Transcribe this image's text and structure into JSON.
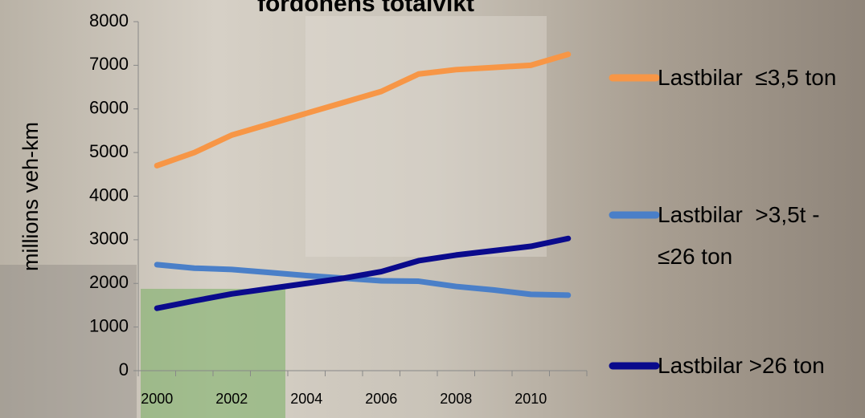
{
  "chart_data": {
    "type": "line",
    "title": "fordonens totalvikt",
    "y_label": "millions veh-km",
    "categories": [
      2000,
      null,
      2002,
      null,
      2004,
      null,
      2006,
      null,
      2008,
      null,
      2010,
      null
    ],
    "series": [
      {
        "name": "Lastbilar  ≤3,5 ton",
        "color": "#f79646",
        "values": [
          4700,
          5000,
          5400,
          5650,
          5900,
          6150,
          6400,
          6800,
          6900,
          6950,
          7000,
          7250
        ]
      },
      {
        "name": "Lastbilar  >3,5t - ≤26 ton",
        "color": "#4a7fc8",
        "values": [
          2430,
          2350,
          2320,
          2250,
          2180,
          2120,
          2060,
          2050,
          1930,
          1850,
          1750,
          1730
        ]
      },
      {
        "name": "Lastbilar >26 ton",
        "color": "#0a0a8c",
        "values": [
          1430,
          1600,
          1760,
          1880,
          2000,
          2120,
          2270,
          2520,
          2650,
          2750,
          2850,
          3030
        ]
      }
    ],
    "ylim": [
      0,
      8000
    ],
    "yticks": [
      0,
      1000,
      2000,
      3000,
      4000,
      5000,
      6000,
      7000,
      8000
    ],
    "grid": false,
    "legend": "right"
  }
}
